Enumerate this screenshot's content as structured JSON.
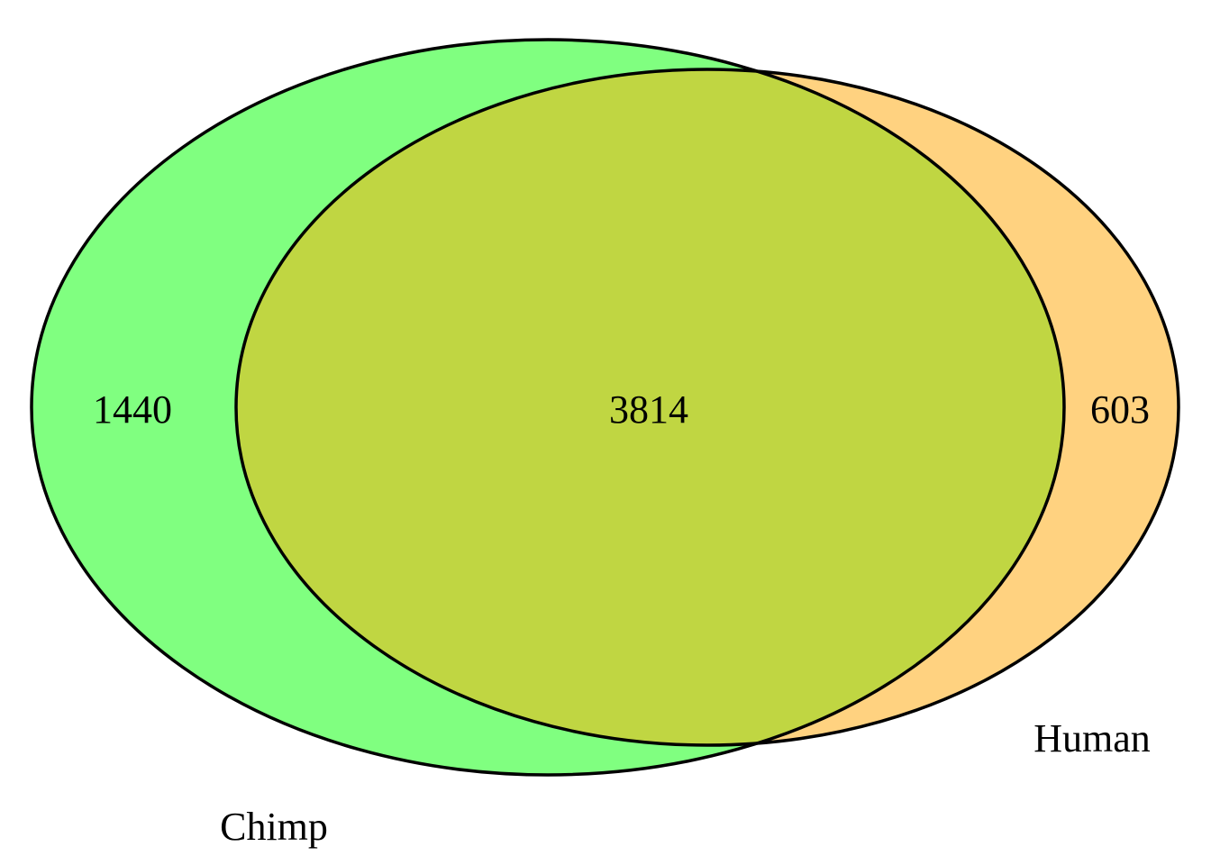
{
  "diagram": {
    "type": "venn",
    "sets": [
      {
        "name": "Chimp",
        "only_count": "1440",
        "color": "#80ff80"
      },
      {
        "name": "Human",
        "only_count": "603",
        "color": "#ffd280"
      }
    ],
    "intersection": {
      "count": "3814",
      "color": "#c0d642"
    },
    "outline_color": "#000000"
  }
}
